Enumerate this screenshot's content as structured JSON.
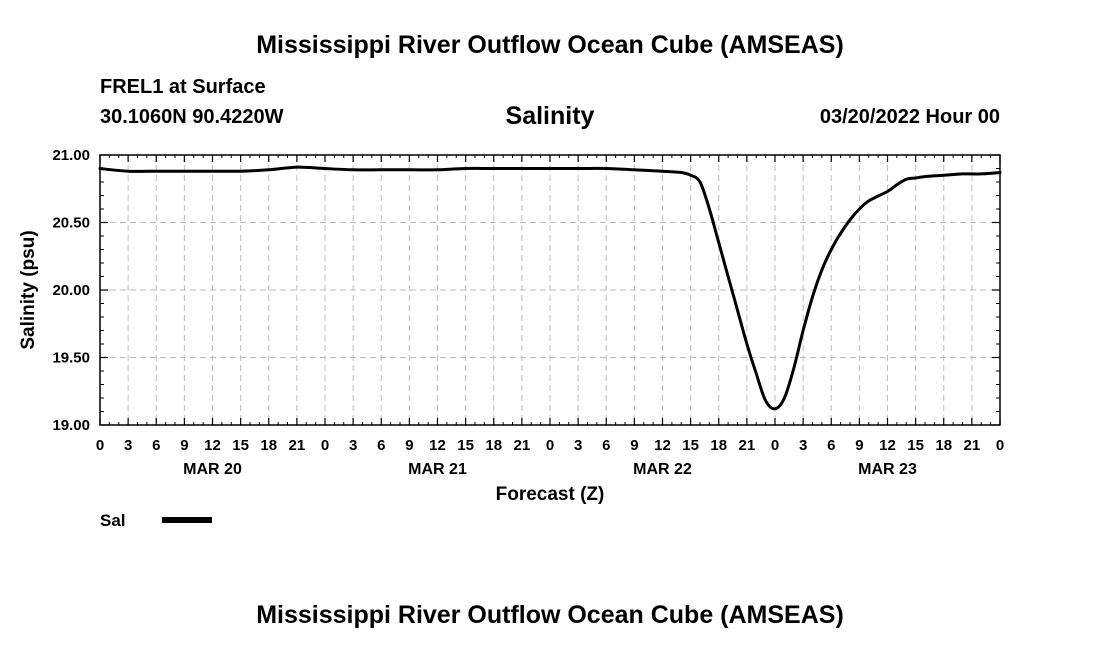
{
  "page": {
    "title": "Mississippi River Outflow Ocean Cube (AMSEAS)",
    "footer_title": "Mississippi River Outflow Ocean Cube (AMSEAS)",
    "station": "FREL1 at Surface",
    "coords": "30.1060N  90.4220W",
    "chart_title": "Salinity",
    "date": "03/20/2022 Hour 00"
  },
  "chart_data": {
    "type": "line",
    "title": "Salinity",
    "xlabel": "Forecast (Z)",
    "ylabel": "Salinity (psu)",
    "ylim": [
      19.0,
      21.0
    ],
    "y_ticks": [
      "19.00",
      "19.50",
      "20.00",
      "20.50",
      "21.00"
    ],
    "x_unit": "hours from 03/20/2022 00Z",
    "xlim": [
      0,
      96
    ],
    "x_tick_labels": [
      "0",
      "3",
      "6",
      "9",
      "12",
      "15",
      "18",
      "21",
      "0",
      "3",
      "6",
      "9",
      "12",
      "15",
      "18",
      "21",
      "0",
      "3",
      "6",
      "9",
      "12",
      "15",
      "18",
      "21",
      "0",
      "3",
      "6",
      "9",
      "12",
      "15",
      "18",
      "21",
      "0"
    ],
    "day_labels": [
      {
        "label": "MAR 20",
        "hour": 12
      },
      {
        "label": "MAR 21",
        "hour": 36
      },
      {
        "label": "MAR 22",
        "hour": 60
      },
      {
        "label": "MAR 23",
        "hour": 84
      }
    ],
    "grid": true,
    "legend": "bottom-left",
    "series": [
      {
        "name": "Sal",
        "color": "#000000",
        "x": [
          0,
          3,
          6,
          9,
          12,
          15,
          18,
          21,
          24,
          27,
          30,
          33,
          36,
          39,
          42,
          45,
          48,
          51,
          54,
          57,
          60,
          62,
          63,
          64,
          65,
          66,
          67,
          68,
          69,
          70,
          71,
          72,
          73,
          74,
          75,
          76,
          77,
          78,
          79,
          80,
          81,
          82,
          84,
          85,
          86,
          87,
          88,
          90,
          92,
          93,
          94,
          96
        ],
        "y": [
          20.9,
          20.88,
          20.88,
          20.88,
          20.88,
          20.88,
          20.89,
          20.91,
          20.9,
          20.89,
          20.89,
          20.89,
          20.89,
          20.9,
          20.9,
          20.9,
          20.9,
          20.9,
          20.9,
          20.89,
          20.88,
          20.87,
          20.85,
          20.8,
          20.6,
          20.35,
          20.1,
          19.85,
          19.6,
          19.38,
          19.18,
          19.12,
          19.2,
          19.42,
          19.7,
          19.95,
          20.15,
          20.3,
          20.42,
          20.52,
          20.6,
          20.66,
          20.73,
          20.78,
          20.82,
          20.83,
          20.84,
          20.85,
          20.86,
          20.86,
          20.86,
          20.87
        ]
      }
    ]
  }
}
